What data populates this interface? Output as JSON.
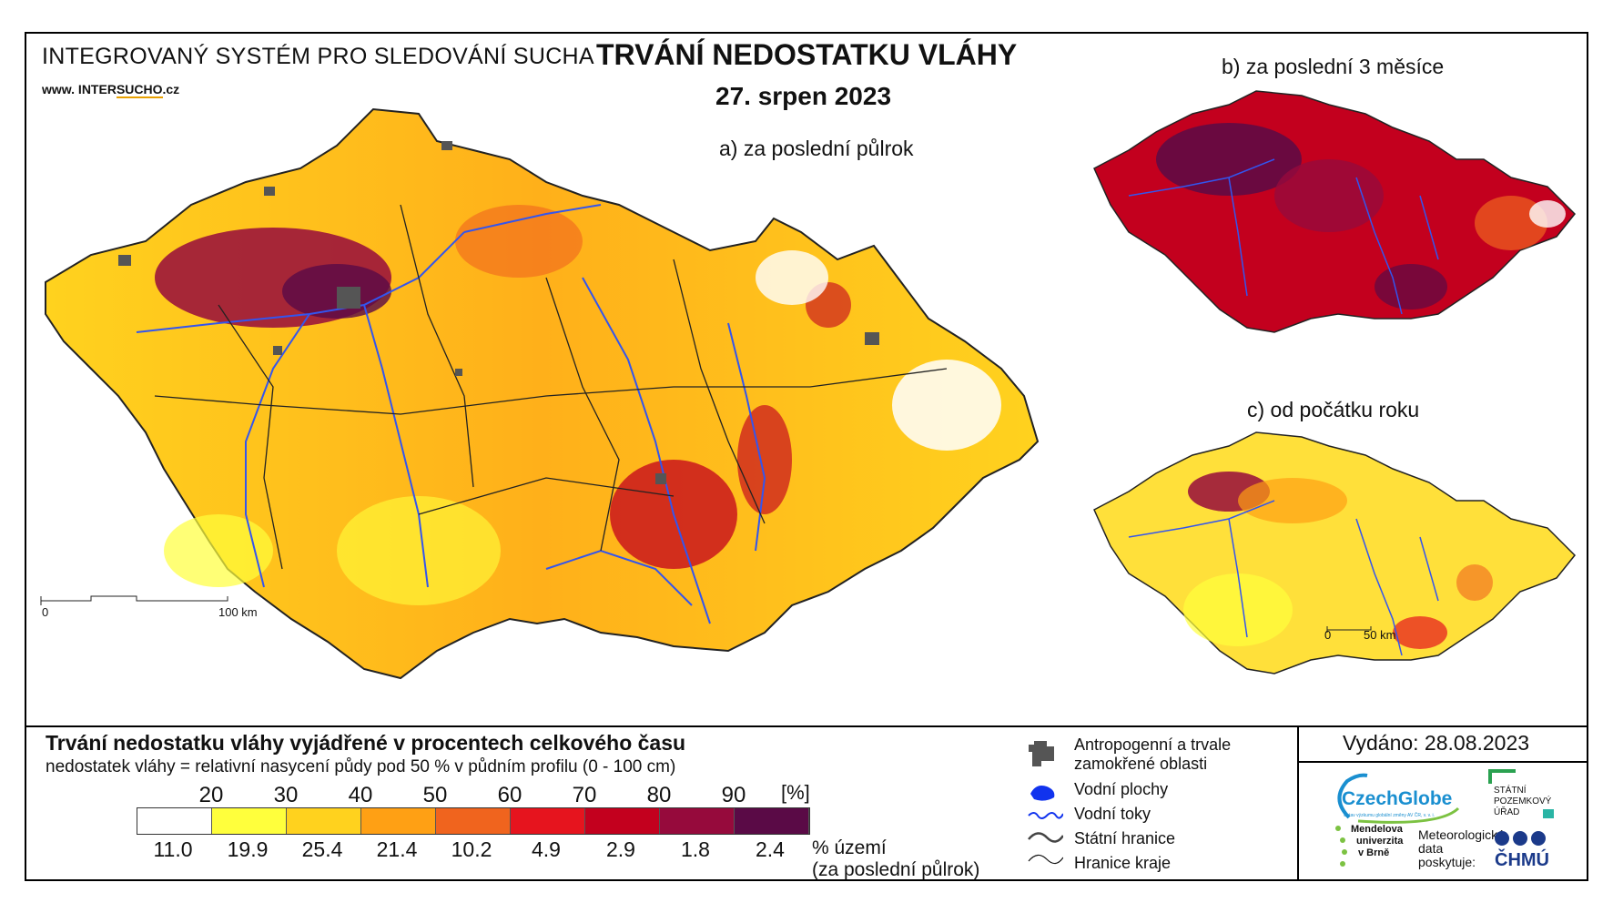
{
  "header": {
    "system_title": "INTEGROVANÝ SYSTÉM PRO SLEDOVÁNÍ SUCHA",
    "website_prefix": "www. INTER",
    "website_brand": "SUCHO",
    "website_suffix": ".cz",
    "main_title": "TRVÁNÍ NEDOSTATKU VLÁHY",
    "date": "27. srpen 2023"
  },
  "maps": {
    "a_label": "a) za poslední půlrok",
    "b_label": "b) za poslední 3 měsíce",
    "c_label": "c) od počátku roku",
    "scale_a": {
      "zero": "0",
      "end": "100 km"
    },
    "scale_bc": {
      "zero": "0",
      "end": "50 km"
    }
  },
  "legend": {
    "title": "Trvání nedostatku vláhy vyjádřené v procentech celkového času",
    "subtitle": "nedostatek vláhy = relativní nasycení půdy pod 50 % v půdním profilu (0 - 100 cm)",
    "unit": "[%]",
    "thresholds": [
      "20",
      "30",
      "40",
      "50",
      "60",
      "70",
      "80",
      "90"
    ],
    "colors": [
      "#ffffff",
      "#ffff3c",
      "#ffd21e",
      "#ffa014",
      "#f0641e",
      "#e6141e",
      "#c3001e",
      "#960a3c",
      "#5a0a46"
    ],
    "area_values": [
      "11.0",
      "19.9",
      "25.4",
      "21.4",
      "10.2",
      "4.9",
      "2.9",
      "1.8",
      "2.4"
    ],
    "area_caption_1": "% území",
    "area_caption_2": "(za poslední půlrok)"
  },
  "symbols": {
    "anthropogenic_1": "Antropogenní a trvale",
    "anthropogenic_2": "zamokřené oblasti",
    "water_bodies": "Vodní plochy",
    "water_courses": "Vodní toky",
    "state_border": "Státní hranice",
    "region_border": "Hranice kraje"
  },
  "footer": {
    "issued": "Vydáno: 28.08.2023",
    "czechglobe": "CzechGlobe",
    "czechglobe_sub": "Ústav výzkumu globální změny AV ČR, v. v. i.",
    "spu_1": "STÁTNÍ",
    "spu_2": "POZEMKOVÝ",
    "spu_3": "ÚŘAD",
    "mendel_1": "Mendelova",
    "mendel_2": "univerzita",
    "mendel_3": "v Brně",
    "meteo_1": "Meteorologická",
    "meteo_2": "data",
    "meteo_3": "poskytuje:",
    "chmu": "ČHMÚ"
  }
}
